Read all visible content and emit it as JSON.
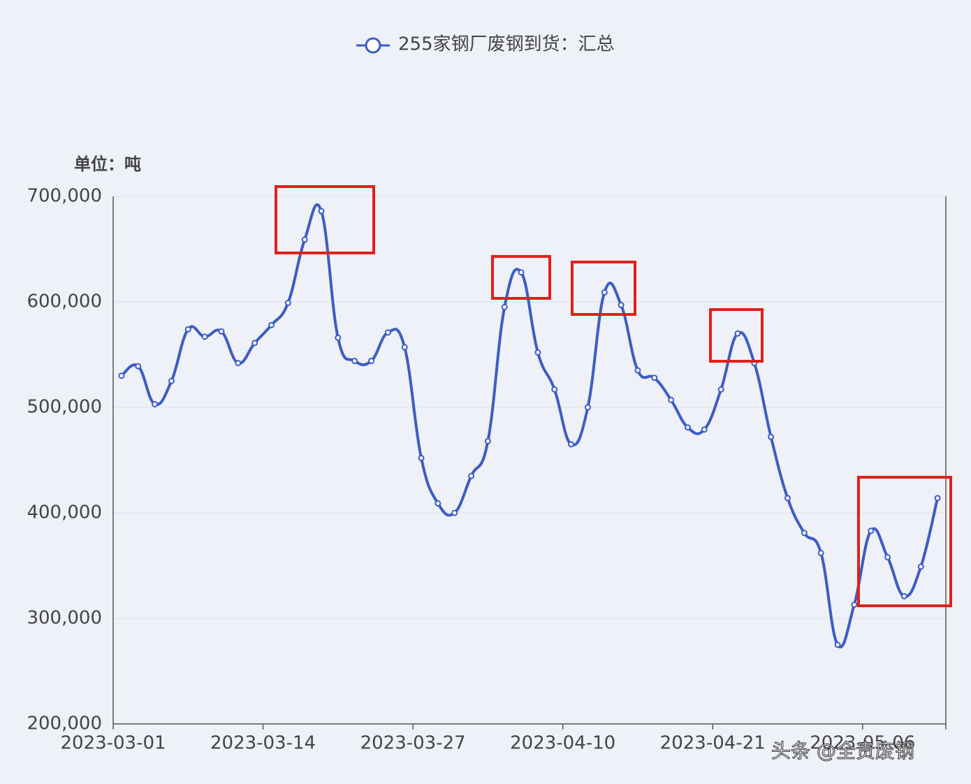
{
  "chart_data": {
    "type": "line",
    "legend": "255家钢厂废钢到货：汇总",
    "unit_label": "单位：吨",
    "watermark": "头条 @全贵废钢",
    "categories": [
      "2023-03-01",
      null,
      null,
      null,
      null,
      null,
      null,
      null,
      null,
      "2023-03-14",
      null,
      null,
      null,
      null,
      null,
      null,
      null,
      null,
      "2023-03-27",
      null,
      null,
      null,
      null,
      null,
      null,
      null,
      null,
      "2023-04-10",
      null,
      null,
      null,
      null,
      null,
      null,
      null,
      null,
      "2023-04-21",
      null,
      null,
      null,
      null,
      null,
      null,
      null,
      null,
      "2023-05-06",
      null,
      null,
      null,
      null
    ],
    "series": [
      {
        "name": "255家钢厂废钢到货：汇总",
        "color": "#3d5cc4",
        "values": [
          530000,
          539000,
          503000,
          525000,
          574000,
          567000,
          572000,
          542000,
          561000,
          578000,
          599000,
          659000,
          686000,
          566000,
          544000,
          544000,
          571000,
          557000,
          452000,
          409000,
          400000,
          435000,
          468000,
          595000,
          628000,
          552000,
          517000,
          465000,
          500000,
          609000,
          597000,
          535000,
          528000,
          507000,
          481000,
          479000,
          517000,
          570000,
          542000,
          472000,
          414000,
          381000,
          362000,
          275000,
          313000,
          383000,
          358000,
          321000,
          349000,
          414000
        ]
      }
    ],
    "ylim": [
      200000,
      700000
    ],
    "yticks": [
      {
        "value": 200000,
        "label": "200,000"
      },
      {
        "value": 300000,
        "label": "300,000"
      },
      {
        "value": 400000,
        "label": "400,000"
      },
      {
        "value": 500000,
        "label": "500,000"
      },
      {
        "value": 600000,
        "label": "600,000"
      },
      {
        "value": 700000,
        "label": "700,000"
      }
    ],
    "grid": true
  }
}
